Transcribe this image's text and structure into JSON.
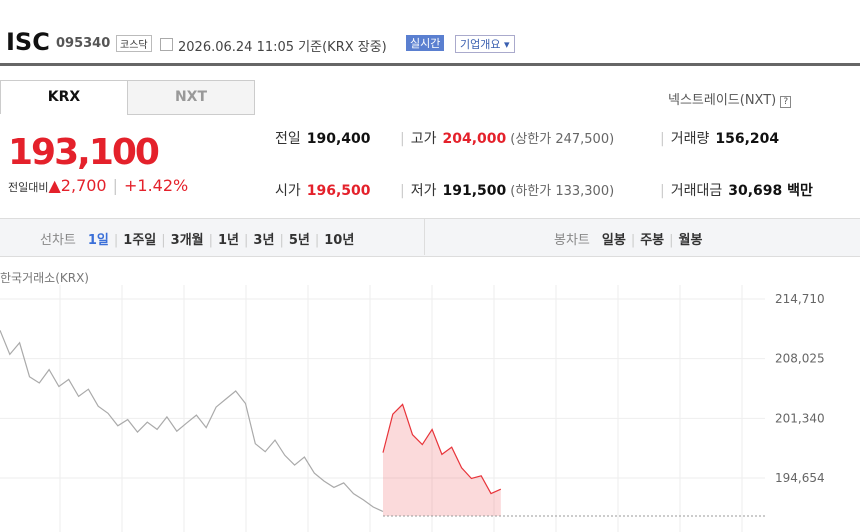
{
  "header": {
    "name": "ISC",
    "code": "095340",
    "market": "코스닥",
    "timestamp": "2026.06.24 11:05",
    "basis": "기준(KRX 장중)",
    "realtime": "실시간",
    "overview": "기업개요"
  },
  "tabs": [
    "KRX",
    "NXT"
  ],
  "nxt_link": "넥스트레이드(NXT)",
  "price": {
    "current": "193,100",
    "change_label": "전일대비",
    "change": "2,700",
    "change_pct": "+1.42%"
  },
  "stats": [
    {
      "label": "전일",
      "value": "190,400"
    },
    {
      "label": "고가",
      "value": "204,000",
      "note": "(상한가 247,500)"
    },
    {
      "label": "거래량",
      "value": "156,204"
    },
    {
      "label": "시가",
      "value": "196,500"
    },
    {
      "label": "저가",
      "value": "191,500",
      "note": "(하한가 133,300)"
    },
    {
      "label": "거래대금",
      "value": "30,698 백만"
    }
  ],
  "period_bar": {
    "line_label": "선차트",
    "periods": [
      "1일",
      "1주일",
      "3개월",
      "1년",
      "3년",
      "5년",
      "10년"
    ],
    "candle_label": "봉차트",
    "candles": [
      "일봉",
      "주봉",
      "월봉"
    ]
  },
  "chart": {
    "type": "line",
    "source": "한국거래소(KRX)",
    "ylim": [
      188600,
      216280
    ],
    "yticks": [
      {
        "value": 214710,
        "label": "214,710"
      },
      {
        "value": 208025,
        "label": "208,025"
      },
      {
        "value": 201340,
        "label": "201,340"
      },
      {
        "value": 194654,
        "label": "194,654"
      }
    ],
    "baseline": 190400,
    "series": [
      {
        "color": "#aaaaaa",
        "values": [
          211200,
          208500,
          209800,
          206000,
          205300,
          206800,
          204900,
          205700,
          203800,
          204600,
          202700,
          201900,
          200500,
          201200,
          199800,
          200900,
          200100,
          201500,
          199900,
          200800,
          201700,
          200300,
          202600,
          203500,
          204400,
          203000,
          198500,
          197600,
          198900,
          197200,
          196100,
          197000,
          195200,
          194300,
          193600,
          194100,
          192900,
          192200,
          191400,
          190900
        ]
      },
      {
        "color": "#e8343a",
        "values": [
          197500,
          201800,
          202900,
          199500,
          198400,
          200100,
          197300,
          198100,
          195800,
          194600,
          194900,
          192900,
          193400
        ]
      }
    ]
  }
}
